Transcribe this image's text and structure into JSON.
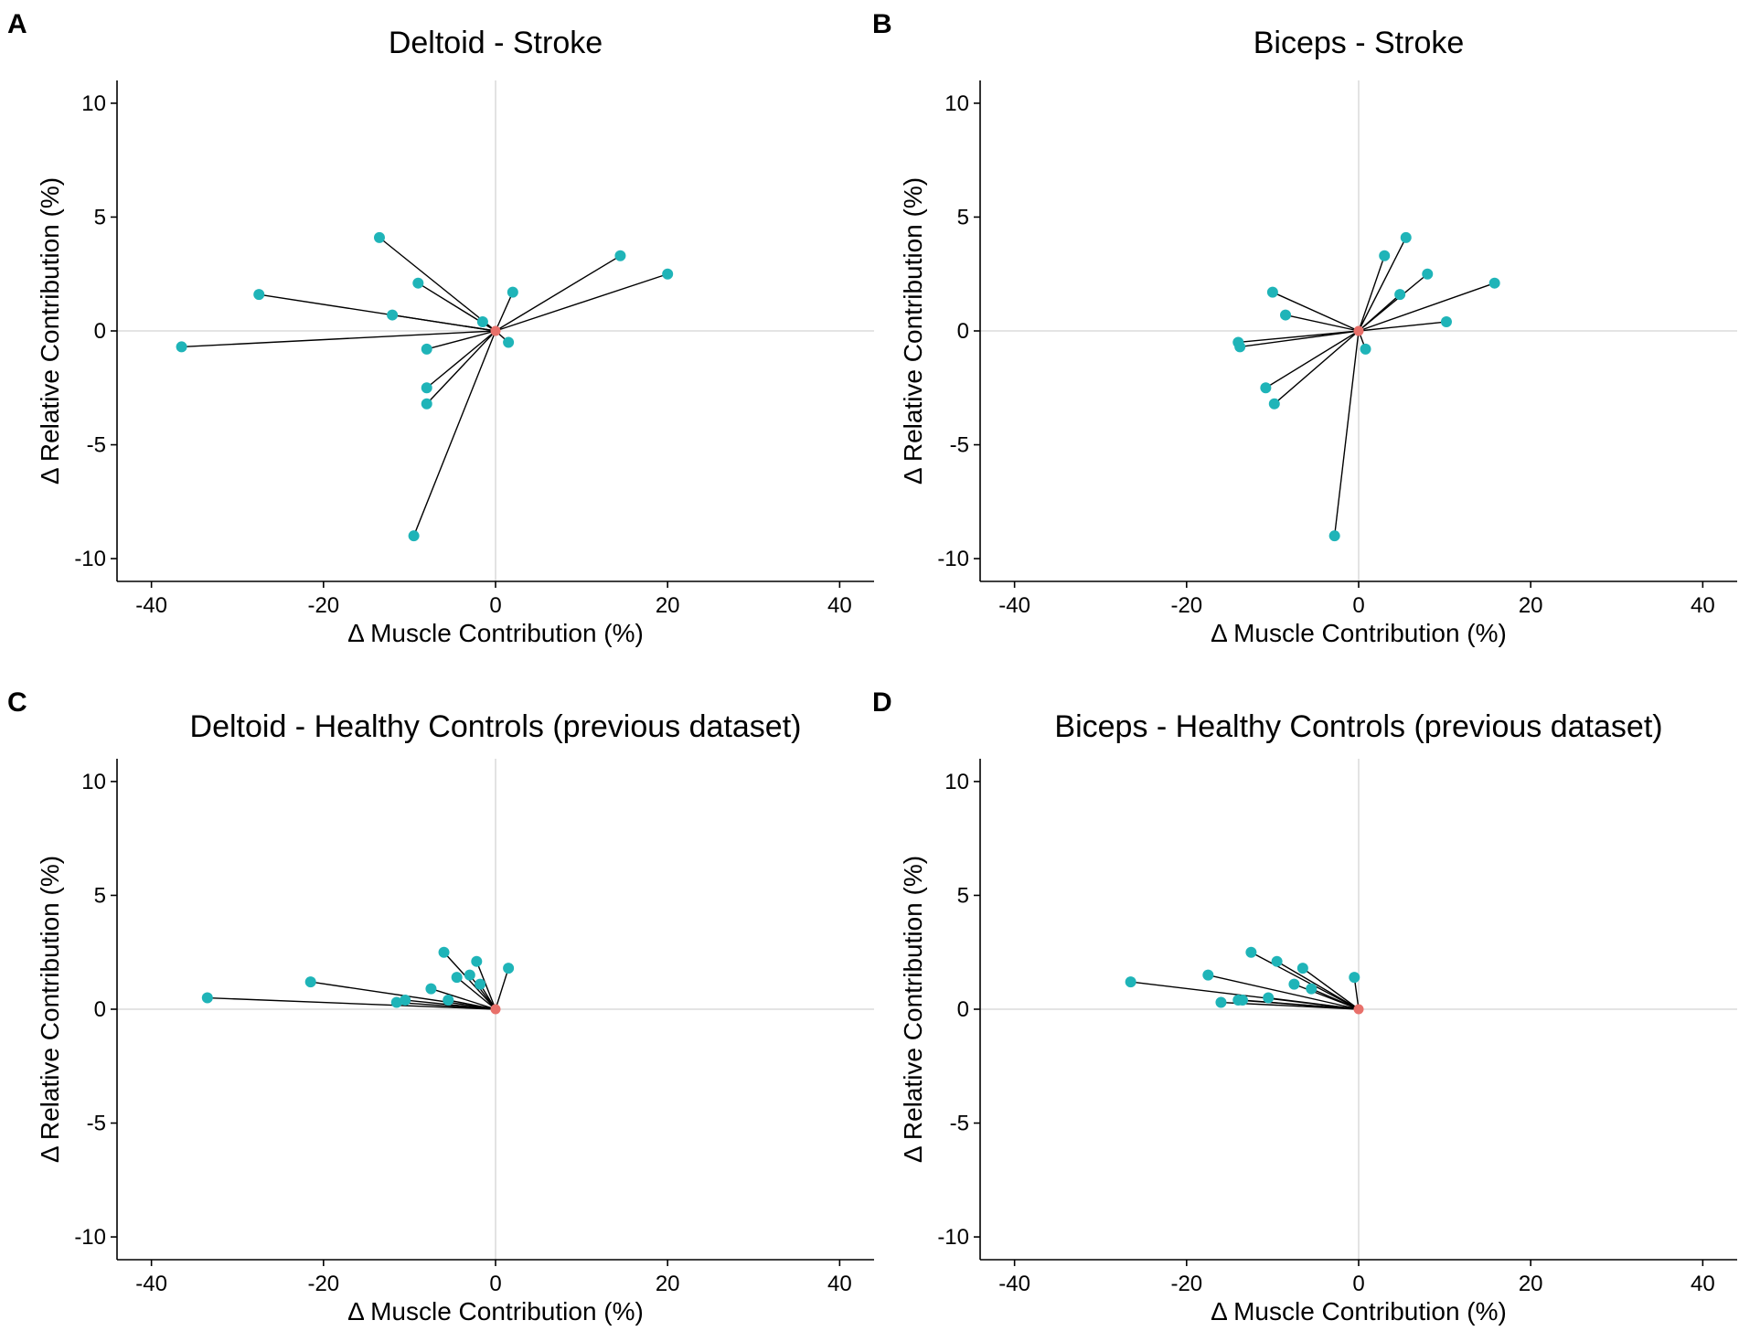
{
  "chart_data": [
    {
      "panel": "A",
      "type": "scatter",
      "title": "Deltoid - Stroke",
      "xlabel": "Δ Muscle Contribution (%)",
      "ylabel": "Δ Relative Contribution (%)",
      "xlim": [
        -44,
        44
      ],
      "ylim": [
        -11,
        11
      ],
      "xticks": [
        -40,
        -20,
        0,
        20,
        40
      ],
      "yticks": [
        -10,
        -5,
        0,
        5,
        10
      ],
      "origin": [
        0,
        0
      ],
      "origin_color": "#e8706a",
      "point_color": "#1fb4b8",
      "points": [
        [
          -36.5,
          -0.7
        ],
        [
          -27.5,
          1.6
        ],
        [
          -13.5,
          4.1
        ],
        [
          -9.0,
          2.1
        ],
        [
          -12.0,
          0.7
        ],
        [
          -8.0,
          -0.8
        ],
        [
          -8.0,
          -2.5
        ],
        [
          -8.0,
          -3.2
        ],
        [
          -9.5,
          -9.0
        ],
        [
          -1.5,
          0.4
        ],
        [
          1.5,
          -0.5
        ],
        [
          2.0,
          1.7
        ],
        [
          14.5,
          3.3
        ],
        [
          20.0,
          2.5
        ]
      ]
    },
    {
      "panel": "B",
      "type": "scatter",
      "title": "Biceps - Stroke",
      "xlabel": "Δ Muscle Contribution (%)",
      "ylabel": "Δ Relative Contribution (%)",
      "xlim": [
        -44,
        44
      ],
      "ylim": [
        -11,
        11
      ],
      "xticks": [
        -40,
        -20,
        0,
        20,
        40
      ],
      "yticks": [
        -10,
        -5,
        0,
        5,
        10
      ],
      "origin": [
        0,
        0
      ],
      "origin_color": "#e8706a",
      "point_color": "#1fb4b8",
      "points": [
        [
          -14.0,
          -0.5
        ],
        [
          -13.8,
          -0.7
        ],
        [
          -10.0,
          1.7
        ],
        [
          -8.5,
          0.7
        ],
        [
          -10.8,
          -2.5
        ],
        [
          -9.8,
          -3.2
        ],
        [
          -2.8,
          -9.0
        ],
        [
          0.8,
          -0.8
        ],
        [
          3.0,
          3.3
        ],
        [
          5.5,
          4.1
        ],
        [
          4.8,
          1.6
        ],
        [
          8.0,
          2.5
        ],
        [
          10.2,
          0.4
        ],
        [
          15.8,
          2.1
        ]
      ]
    },
    {
      "panel": "C",
      "type": "scatter",
      "title": "Deltoid - Healthy Controls (previous dataset)",
      "xlabel": "Δ Muscle Contribution (%)",
      "ylabel": "Δ Relative Contribution (%)",
      "xlim": [
        -44,
        44
      ],
      "ylim": [
        -11,
        11
      ],
      "xticks": [
        -40,
        -20,
        0,
        20,
        40
      ],
      "yticks": [
        -10,
        -5,
        0,
        5,
        10
      ],
      "origin": [
        0,
        0
      ],
      "origin_color": "#e8706a",
      "point_color": "#1fb4b8",
      "points": [
        [
          -33.5,
          0.5
        ],
        [
          -21.5,
          1.2
        ],
        [
          -11.5,
          0.3
        ],
        [
          -10.5,
          0.4
        ],
        [
          -7.5,
          0.9
        ],
        [
          -5.5,
          0.4
        ],
        [
          -6.0,
          2.5
        ],
        [
          -4.5,
          1.4
        ],
        [
          -3.0,
          1.5
        ],
        [
          -2.2,
          2.1
        ],
        [
          -1.8,
          1.1
        ],
        [
          1.5,
          1.8
        ]
      ]
    },
    {
      "panel": "D",
      "type": "scatter",
      "title": "Biceps - Healthy Controls (previous dataset)",
      "xlabel": "Δ Muscle Contribution (%)",
      "ylabel": "Δ Relative Contribution (%)",
      "xlim": [
        -44,
        44
      ],
      "ylim": [
        -11,
        11
      ],
      "xticks": [
        -40,
        -20,
        0,
        20,
        40
      ],
      "yticks": [
        -10,
        -5,
        0,
        5,
        10
      ],
      "origin": [
        0,
        0
      ],
      "origin_color": "#e8706a",
      "point_color": "#1fb4b8",
      "points": [
        [
          -26.5,
          1.2
        ],
        [
          -17.5,
          1.5
        ],
        [
          -16.0,
          0.3
        ],
        [
          -14.0,
          0.4
        ],
        [
          -13.5,
          0.4
        ],
        [
          -10.5,
          0.5
        ],
        [
          -12.5,
          2.5
        ],
        [
          -9.5,
          2.1
        ],
        [
          -7.5,
          1.1
        ],
        [
          -6.5,
          1.8
        ],
        [
          -5.5,
          0.9
        ],
        [
          -0.5,
          1.4
        ]
      ]
    }
  ]
}
